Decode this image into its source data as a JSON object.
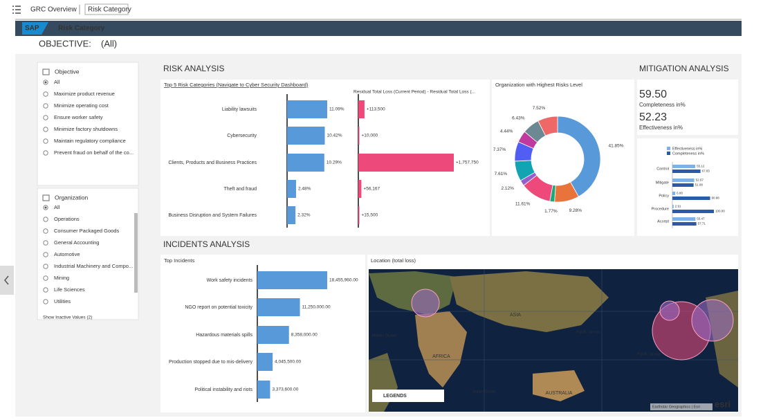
{
  "nav": {
    "breadcrumbs": [
      "GRC Overview",
      "Risk Category"
    ]
  },
  "header": {
    "logo": "SAP",
    "title": "Risk Category"
  },
  "objective": {
    "label": "OBJECTIVE:",
    "value": "(All)"
  },
  "filters": {
    "objective": {
      "title": "Objective",
      "options": [
        "All",
        "Maximize product revenue",
        "Minimize operating cost",
        "Ensure worker safety",
        "Minimize factory shutdowns",
        "Maintain regulatory compliance",
        "Prevent fraud on behalf of the co..."
      ]
    },
    "organization": {
      "title": "Organization",
      "options": [
        "All",
        "Operations",
        "Consumer Packaged Goods",
        "General Accounting",
        "Automotive",
        "Industrial Machinery and Compo...",
        "Mining",
        "Life Sciences",
        "Utilities"
      ],
      "link": "Show Inactive Values (2)"
    }
  },
  "risk_analysis": {
    "heading": "RISK ANALYSIS",
    "top5": {
      "type": "bar",
      "title": "Top 5 Risk Categories (Navigate to Cyber Security Dashboard)",
      "categories": [
        "Liability lawsuits",
        "Cybersecurity",
        "Clients, Products and Business Practices",
        "Theft and fraud",
        "Business Disruption and System Failures"
      ],
      "values": [
        11.09,
        10.42,
        10.29,
        2.48,
        2.32
      ],
      "value_labels": [
        "11.09%",
        "10.42%",
        "10.29%",
        "2.48%",
        "2.32%"
      ],
      "color": "#5899da"
    },
    "residual": {
      "type": "bar",
      "title": "Residual Total Loss (Current Period) - Residual Total Loss (...",
      "values": [
        113500,
        10000,
        1757750,
        56167,
        15500
      ],
      "value_labels": [
        "+113,500",
        "+10,000",
        "+1,757,750",
        "+56,167",
        "+15,500"
      ],
      "color": "#ed4a7b"
    },
    "donut": {
      "type": "pie",
      "title": "Organization with Highest Risks Level",
      "values": [
        41.85,
        9.28,
        1.77,
        11.61,
        2.12,
        7.61,
        7.37,
        4.44,
        6.43,
        7.52
      ],
      "value_labels": [
        "41.85%",
        "9.28%",
        "1.77%",
        "11.61%",
        "2.12%",
        "7.61%",
        "7.37%",
        "4.44%",
        "6.43%",
        "7.52%"
      ],
      "colors": [
        "#5899da",
        "#e8743b",
        "#19a979",
        "#ed4a7b",
        "#945ecf",
        "#13a4b4",
        "#525df4",
        "#bf399e",
        "#6c8893",
        "#ee6868"
      ]
    }
  },
  "mitigation": {
    "heading": "MITIGATION ANALYSIS",
    "kpis": [
      {
        "value": "59.50",
        "label": "Completeness in%"
      },
      {
        "value": "52.23",
        "label": "Effectiveness in%"
      }
    ],
    "chart": {
      "type": "bar",
      "categories": [
        "Control",
        "Mitigate",
        "Policy",
        "Procedure",
        "Accept"
      ],
      "xlim": [
        0,
        100
      ],
      "series": [
        {
          "name": "Effectiveness in%",
          "color": "#7eb2e6",
          "values": [
            55.12,
            52.67,
            6.88,
            2.91,
            55.47
          ]
        },
        {
          "name": "Completeness in%",
          "color": "#2b5aa8",
          "values": [
            67.65,
            51.08,
            90.88,
            100.0,
            57.71
          ],
          "value_labels": [
            "67.65",
            "51.08",
            "90.88",
            "100.00",
            "57.71"
          ]
        }
      ]
    }
  },
  "incidents": {
    "heading": "INCIDENTS ANALYSIS",
    "top": {
      "type": "bar",
      "title": "Top Incidents",
      "categories": [
        "Work safety incidents",
        "NGO report on potential toxicity",
        "Hazardous materials spills",
        "Production stopped due to mis-delivery",
        "Political instability and riots"
      ],
      "values": [
        18455960,
        11250000,
        8358000,
        4045500,
        3373600
      ],
      "value_labels": [
        "18,455,960.00",
        "11,250,000.00",
        "8,358,000.00",
        "4,045,500.00",
        "3,373,600.00"
      ],
      "color": "#5899da"
    },
    "map": {
      "title": "Location (total loss)",
      "legend": "LEGENDS",
      "labels": [
        "ASIA",
        "AFRICA",
        "AUSTRALIA",
        "Atlantic Ocean",
        "Pacific Ocean",
        "Indian Ocean",
        "Pacific Ocean"
      ],
      "credit": "Earthstar Geographics | Esri",
      "brand": "esri"
    }
  }
}
